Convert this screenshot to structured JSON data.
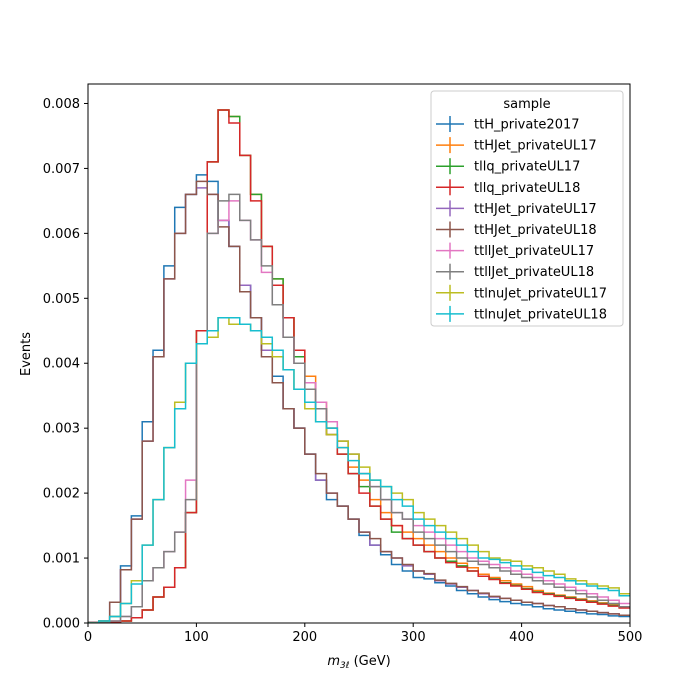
{
  "chart_data": {
    "type": "line",
    "drawstyle": "steps-mid",
    "bin_edges_start": 0,
    "bin_width": 10,
    "xlim": [
      0,
      500
    ],
    "ylim": [
      0,
      0.0083
    ],
    "xticks": [
      0,
      100,
      200,
      300,
      400,
      500
    ],
    "xtick_labels": [
      "0",
      "100",
      "200",
      "300",
      "400",
      "500"
    ],
    "yticks": [
      0,
      0.001,
      0.002,
      0.003,
      0.004,
      0.005,
      0.006,
      0.007,
      0.008
    ],
    "ytick_labels": [
      "0.000",
      "0.001",
      "0.002",
      "0.003",
      "0.004",
      "0.005",
      "0.006",
      "0.007",
      "0.008"
    ],
    "xlabel_main": "m",
    "xlabel_sub": "3ℓ",
    "xlabel_unit": " (GeV)",
    "ylabel": "Events",
    "legend": {
      "title": "sample",
      "position": "top-right"
    },
    "grid": false,
    "series": [
      {
        "name": "ttH_private2017",
        "color": "#1f77b4",
        "values": [
          1e-05,
          3e-05,
          0.0001,
          0.00088,
          0.00165,
          0.0031,
          0.0042,
          0.0055,
          0.0064,
          0.0066,
          0.0069,
          0.0068,
          0.0062,
          0.0058,
          0.0052,
          0.0047,
          0.0042,
          0.0038,
          0.0033,
          0.003,
          0.0026,
          0.0022,
          0.0019,
          0.0018,
          0.0016,
          0.00135,
          0.0012,
          0.00105,
          0.0009,
          0.0008,
          0.0007,
          0.00068,
          0.00062,
          0.00057,
          0.0005,
          0.00045,
          0.0004,
          0.00036,
          0.00033,
          0.0003,
          0.00028,
          0.00025,
          0.00022,
          0.0002,
          0.00018,
          0.00016,
          0.00014,
          0.00013,
          0.00011,
          0.0001
        ]
      },
      {
        "name": "ttHJet_privateUL17",
        "color": "#ff7f0e",
        "values": [
          0,
          0,
          1e-05,
          3e-05,
          8e-05,
          0.0002,
          0.0004,
          0.00055,
          0.00085,
          0.0017,
          0.0045,
          0.0071,
          0.0079,
          0.0078,
          0.0072,
          0.0066,
          0.0058,
          0.0053,
          0.0047,
          0.0042,
          0.0038,
          0.0034,
          0.003,
          0.0027,
          0.0024,
          0.0022,
          0.0019,
          0.0017,
          0.0015,
          0.0014,
          0.0013,
          0.0012,
          0.0011,
          0.001,
          0.00092,
          0.00085,
          0.00075,
          0.0007,
          0.00065,
          0.0006,
          0.00056,
          0.0005,
          0.00046,
          0.00043,
          0.0004,
          0.00037,
          0.00034,
          0.00031,
          0.00028,
          0.00025
        ]
      },
      {
        "name": "tllq_privateUL17",
        "color": "#2ca02c",
        "values": [
          0,
          0,
          1e-05,
          3e-05,
          8e-05,
          0.0002,
          0.0004,
          0.00055,
          0.00085,
          0.0017,
          0.0045,
          0.0071,
          0.0079,
          0.0078,
          0.0072,
          0.0066,
          0.0058,
          0.0053,
          0.0047,
          0.0041,
          0.0037,
          0.0033,
          0.0029,
          0.0026,
          0.0023,
          0.0021,
          0.0018,
          0.0016,
          0.0014,
          0.0013,
          0.0012,
          0.0011,
          0.001,
          0.00095,
          0.00088,
          0.0008,
          0.00072,
          0.00068,
          0.00062,
          0.00058,
          0.00053,
          0.00048,
          0.00045,
          0.00042,
          0.00039,
          0.00036,
          0.00033,
          0.0003,
          0.00027,
          0.00024
        ]
      },
      {
        "name": "tllq_privateUL18",
        "color": "#d62728",
        "values": [
          0,
          0,
          1e-05,
          3e-05,
          8e-05,
          0.0002,
          0.0004,
          0.00055,
          0.00085,
          0.0017,
          0.0045,
          0.0071,
          0.0079,
          0.0077,
          0.0072,
          0.0065,
          0.0058,
          0.0052,
          0.0047,
          0.0042,
          0.0037,
          0.0033,
          0.0029,
          0.0026,
          0.0023,
          0.002,
          0.0018,
          0.0016,
          0.0015,
          0.0013,
          0.0012,
          0.0011,
          0.001,
          0.00093,
          0.00086,
          0.0008,
          0.00072,
          0.00067,
          0.00061,
          0.00057,
          0.00052,
          0.00047,
          0.00044,
          0.00041,
          0.00038,
          0.00035,
          0.00032,
          0.00029,
          0.00026,
          0.00023
        ]
      },
      {
        "name": "ttHJet_privateUL17",
        "color": "#9467bd",
        "values": [
          1e-05,
          3e-05,
          0.00032,
          0.00082,
          0.0016,
          0.0028,
          0.0041,
          0.0053,
          0.006,
          0.0066,
          0.0067,
          0.0066,
          0.0062,
          0.0058,
          0.0052,
          0.0047,
          0.0042,
          0.0037,
          0.0033,
          0.003,
          0.0026,
          0.0022,
          0.002,
          0.0018,
          0.0016,
          0.0014,
          0.0012,
          0.0011,
          0.001,
          0.00088,
          0.0008,
          0.00075,
          0.00065,
          0.0006,
          0.00055,
          0.0005,
          0.00045,
          0.0004,
          0.00038,
          0.00035,
          0.00032,
          0.0003,
          0.00027,
          0.00025,
          0.00022,
          0.0002,
          0.00018,
          0.00016,
          0.00014,
          0.00012
        ]
      },
      {
        "name": "ttHJet_privateUL18",
        "color": "#8c564b",
        "values": [
          1e-05,
          3e-05,
          0.00032,
          0.00082,
          0.0016,
          0.0028,
          0.0041,
          0.0053,
          0.006,
          0.0066,
          0.0068,
          0.0066,
          0.0061,
          0.0058,
          0.0051,
          0.0047,
          0.0041,
          0.0037,
          0.0033,
          0.003,
          0.0026,
          0.0023,
          0.002,
          0.0018,
          0.0016,
          0.0014,
          0.0013,
          0.0011,
          0.001,
          0.0009,
          0.0008,
          0.00076,
          0.00066,
          0.00061,
          0.00056,
          0.0005,
          0.00046,
          0.00041,
          0.00038,
          0.00035,
          0.00032,
          0.0003,
          0.00027,
          0.00025,
          0.00022,
          0.0002,
          0.00018,
          0.00016,
          0.00014,
          0.00012
        ]
      },
      {
        "name": "ttllJet_privateUL17",
        "color": "#e377c2",
        "values": [
          0,
          1e-05,
          3e-05,
          0.0001,
          0.00025,
          0.00065,
          0.00085,
          0.0011,
          0.0014,
          0.0022,
          0.0043,
          0.006,
          0.0062,
          0.0065,
          0.0062,
          0.0059,
          0.0054,
          0.0049,
          0.0044,
          0.004,
          0.0037,
          0.0034,
          0.0031,
          0.0028,
          0.0026,
          0.0023,
          0.0021,
          0.0019,
          0.0017,
          0.0016,
          0.0015,
          0.0014,
          0.0013,
          0.0012,
          0.0011,
          0.001,
          0.00095,
          0.0009,
          0.00085,
          0.0008,
          0.00075,
          0.0007,
          0.00065,
          0.0006,
          0.00055,
          0.0005,
          0.00045,
          0.0004,
          0.00035,
          0.0003
        ]
      },
      {
        "name": "ttllJet_privateUL18",
        "color": "#7f7f7f",
        "values": [
          0,
          1e-05,
          3e-05,
          0.0001,
          0.00025,
          0.00065,
          0.00085,
          0.0011,
          0.0014,
          0.0019,
          0.0043,
          0.006,
          0.0065,
          0.0066,
          0.0062,
          0.0059,
          0.0055,
          0.0049,
          0.0044,
          0.004,
          0.0036,
          0.0033,
          0.003,
          0.0028,
          0.0026,
          0.0023,
          0.0021,
          0.0019,
          0.0017,
          0.0016,
          0.0014,
          0.0013,
          0.0012,
          0.0011,
          0.001,
          0.00095,
          0.0009,
          0.00085,
          0.0008,
          0.00075,
          0.0007,
          0.00065,
          0.0006,
          0.00055,
          0.0005,
          0.00045,
          0.0004,
          0.00035,
          0.0003,
          0.00025
        ]
      },
      {
        "name": "ttlnuJet_privateUL17",
        "color": "#bcbd22",
        "values": [
          0,
          3e-05,
          0.0001,
          0.0003,
          0.00065,
          0.0012,
          0.0019,
          0.0027,
          0.0034,
          0.004,
          0.0043,
          0.0044,
          0.0047,
          0.0046,
          0.0046,
          0.0045,
          0.0043,
          0.0041,
          0.0039,
          0.0036,
          0.0033,
          0.0031,
          0.0029,
          0.0028,
          0.0026,
          0.0024,
          0.0022,
          0.0021,
          0.002,
          0.0019,
          0.0017,
          0.0016,
          0.0015,
          0.0014,
          0.0013,
          0.0012,
          0.0011,
          0.001,
          0.00097,
          0.00095,
          0.00088,
          0.00085,
          0.0008,
          0.00075,
          0.00068,
          0.00065,
          0.0006,
          0.00057,
          0.00054,
          0.00045
        ]
      },
      {
        "name": "ttlnuJet_privateUL18",
        "color": "#17becf",
        "values": [
          0,
          3e-05,
          0.0001,
          0.0003,
          0.0006,
          0.0012,
          0.0019,
          0.0027,
          0.0033,
          0.004,
          0.0043,
          0.0045,
          0.0047,
          0.0047,
          0.0046,
          0.0045,
          0.0044,
          0.0042,
          0.0039,
          0.0036,
          0.0034,
          0.0031,
          0.003,
          0.0027,
          0.0025,
          0.0023,
          0.0022,
          0.0021,
          0.0019,
          0.0018,
          0.0016,
          0.0015,
          0.0014,
          0.0013,
          0.0012,
          0.0011,
          0.001,
          0.00098,
          0.00093,
          0.00088,
          0.00083,
          0.00078,
          0.00073,
          0.0007,
          0.00065,
          0.0006,
          0.00057,
          0.00053,
          0.0005,
          0.00042
        ]
      }
    ]
  }
}
